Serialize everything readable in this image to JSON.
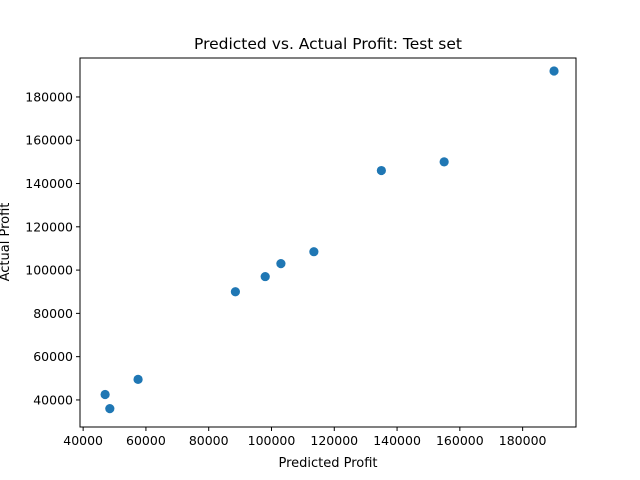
{
  "chart_data": {
    "type": "scatter",
    "title": "Predicted vs. Actual Profit: Test set",
    "xlabel": "Predicted Profit",
    "ylabel": "Actual Profit",
    "xlim": [
      39000,
      197000
    ],
    "ylim": [
      27500,
      198000
    ],
    "xticks": [
      40000,
      60000,
      80000,
      100000,
      120000,
      140000,
      160000,
      180000
    ],
    "yticks": [
      40000,
      60000,
      80000,
      100000,
      120000,
      140000,
      160000,
      180000
    ],
    "grid": false,
    "point_color": "#1f77b4",
    "points": [
      {
        "x": 47000,
        "y": 42500
      },
      {
        "x": 48500,
        "y": 36000
      },
      {
        "x": 57500,
        "y": 49500
      },
      {
        "x": 88500,
        "y": 90000
      },
      {
        "x": 98000,
        "y": 97000
      },
      {
        "x": 103000,
        "y": 103000
      },
      {
        "x": 113500,
        "y": 108500
      },
      {
        "x": 135000,
        "y": 146000
      },
      {
        "x": 155000,
        "y": 150000
      },
      {
        "x": 190000,
        "y": 192000
      }
    ]
  }
}
